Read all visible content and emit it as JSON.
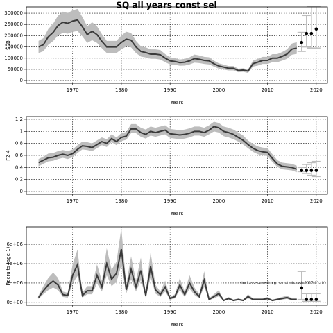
{
  "chart_data": [
    {
      "type": "line",
      "title": "SQ all years const sel",
      "xlabel": "Years",
      "ylabel": "SSB",
      "x": [
        1963,
        1964,
        1965,
        1966,
        1967,
        1968,
        1969,
        1970,
        1971,
        1972,
        1973,
        1974,
        1975,
        1976,
        1977,
        1978,
        1979,
        1980,
        1981,
        1982,
        1983,
        1984,
        1985,
        1986,
        1987,
        1988,
        1989,
        1990,
        1991,
        1992,
        1993,
        1994,
        1995,
        1996,
        1997,
        1998,
        1999,
        2000,
        2001,
        2002,
        2003,
        2004,
        2005,
        2006,
        2007,
        2008,
        2009,
        2010,
        2011,
        2012,
        2013,
        2014,
        2015,
        2016
      ],
      "values": [
        150000,
        160000,
        195000,
        215000,
        245000,
        260000,
        255000,
        265000,
        270000,
        240000,
        205000,
        220000,
        205000,
        175000,
        150000,
        150000,
        150000,
        170000,
        185000,
        180000,
        150000,
        130000,
        125000,
        118000,
        118000,
        115000,
        100000,
        88000,
        85000,
        80000,
        82000,
        88000,
        98000,
        95000,
        90000,
        88000,
        75000,
        65000,
        60000,
        55000,
        55000,
        45000,
        47000,
        42000,
        75000,
        82000,
        90000,
        90000,
        100000,
        100000,
        108000,
        118000,
        140000,
        145000
      ],
      "lower": [
        123000,
        131000,
        160000,
        176000,
        201000,
        213000,
        209000,
        217000,
        221000,
        197000,
        168000,
        180000,
        168000,
        144000,
        123000,
        123000,
        123000,
        139000,
        152000,
        148000,
        123000,
        107000,
        103000,
        97000,
        97000,
        94000,
        82000,
        72000,
        70000,
        66000,
        67000,
        72000,
        80000,
        78000,
        74000,
        72000,
        62000,
        53000,
        49000,
        45000,
        45000,
        37000,
        39000,
        34000,
        62000,
        67000,
        74000,
        74000,
        82000,
        82000,
        89000,
        97000,
        115000,
        119000
      ],
      "upper": [
        177000,
        189000,
        230000,
        254000,
        289000,
        307000,
        301000,
        313000,
        319000,
        283000,
        242000,
        260000,
        242000,
        207000,
        177000,
        177000,
        177000,
        201000,
        218000,
        212000,
        177000,
        153000,
        148000,
        139000,
        139000,
        136000,
        118000,
        104000,
        100000,
        94000,
        97000,
        104000,
        116000,
        112000,
        106000,
        104000,
        89000,
        77000,
        71000,
        65000,
        65000,
        53000,
        55000,
        50000,
        89000,
        97000,
        106000,
        106000,
        118000,
        118000,
        127000,
        139000,
        165000,
        171000
      ],
      "forecast": {
        "x": [
          2017,
          2018,
          2019,
          2020
        ],
        "values": [
          170000,
          210000,
          210000,
          230000
        ],
        "lower": [
          130000,
          150000,
          145000,
          145000
        ],
        "upper": [
          215000,
          290000,
          330000,
          330000
        ]
      },
      "color": "#3a3a3a",
      "band_color": "#bdbdbd",
      "forecast_color": "#000000",
      "interval_color": "#bdbdbd",
      "xlim": [
        1960.5,
        2022.3
      ],
      "xticks": [
        1970,
        1980,
        1990,
        2000,
        2010,
        2020
      ],
      "ylim": [
        -12000,
        328000
      ],
      "yticks": [
        0,
        50000,
        100000,
        150000,
        200000,
        250000,
        300000
      ],
      "grid": true
    },
    {
      "type": "line",
      "xlabel": "Years",
      "ylabel": "F2-4",
      "x": [
        1963,
        1964,
        1965,
        1966,
        1967,
        1968,
        1969,
        1970,
        1971,
        1972,
        1973,
        1974,
        1975,
        1976,
        1977,
        1978,
        1979,
        1980,
        1981,
        1982,
        1983,
        1984,
        1985,
        1986,
        1987,
        1988,
        1989,
        1990,
        1991,
        1992,
        1993,
        1994,
        1995,
        1996,
        1997,
        1998,
        1999,
        2000,
        2001,
        2002,
        2003,
        2004,
        2005,
        2006,
        2007,
        2008,
        2009,
        2010,
        2011,
        2012,
        2013,
        2014,
        2015,
        2016
      ],
      "values": [
        0.48,
        0.52,
        0.56,
        0.57,
        0.6,
        0.62,
        0.6,
        0.63,
        0.7,
        0.76,
        0.75,
        0.73,
        0.78,
        0.83,
        0.8,
        0.88,
        0.83,
        0.9,
        0.92,
        1.04,
        1.04,
        0.98,
        0.95,
        1.0,
        0.98,
        1.0,
        1.02,
        0.96,
        0.95,
        0.94,
        0.95,
        0.97,
        1.0,
        1.0,
        0.98,
        1.02,
        1.08,
        1.06,
        1.0,
        0.98,
        0.95,
        0.9,
        0.85,
        0.78,
        0.72,
        0.68,
        0.66,
        0.65,
        0.55,
        0.46,
        0.42,
        0.41,
        0.4,
        0.37
      ],
      "lower": [
        0.42,
        0.46,
        0.5,
        0.51,
        0.54,
        0.56,
        0.54,
        0.57,
        0.64,
        0.7,
        0.69,
        0.67,
        0.72,
        0.77,
        0.74,
        0.82,
        0.77,
        0.84,
        0.86,
        0.97,
        0.97,
        0.91,
        0.88,
        0.93,
        0.91,
        0.93,
        0.95,
        0.89,
        0.88,
        0.87,
        0.88,
        0.9,
        0.93,
        0.93,
        0.91,
        0.95,
        1.0,
        0.98,
        0.92,
        0.9,
        0.87,
        0.83,
        0.78,
        0.72,
        0.66,
        0.62,
        0.6,
        0.59,
        0.49,
        0.41,
        0.37,
        0.36,
        0.35,
        0.32
      ],
      "upper": [
        0.54,
        0.58,
        0.63,
        0.64,
        0.67,
        0.69,
        0.67,
        0.7,
        0.77,
        0.83,
        0.82,
        0.8,
        0.85,
        0.9,
        0.87,
        0.95,
        0.9,
        0.97,
        0.99,
        1.12,
        1.12,
        1.06,
        1.03,
        1.08,
        1.06,
        1.08,
        1.1,
        1.04,
        1.03,
        1.02,
        1.03,
        1.05,
        1.08,
        1.08,
        1.06,
        1.1,
        1.16,
        1.14,
        1.08,
        1.06,
        1.03,
        0.98,
        0.93,
        0.85,
        0.79,
        0.75,
        0.73,
        0.72,
        0.62,
        0.52,
        0.48,
        0.47,
        0.46,
        0.43
      ],
      "forecast": {
        "x": [
          2017,
          2018,
          2019,
          2020
        ],
        "values": [
          0.35,
          0.35,
          0.35,
          0.35
        ],
        "lower": [
          0.33,
          0.3,
          0.27,
          0.25
        ],
        "upper": [
          0.4,
          0.45,
          0.48,
          0.5
        ]
      },
      "color": "#3a3a3a",
      "band_color": "#bdbdbd",
      "forecast_color": "#000000",
      "interval_color": "#bdbdbd",
      "xlim": [
        1960.5,
        2022.3
      ],
      "xticks": [
        1970,
        1980,
        1990,
        2000,
        2010,
        2020
      ],
      "ylim": [
        -0.046,
        1.246
      ],
      "yticks": [
        0.0,
        0.2,
        0.4,
        0.6,
        0.8,
        1.0,
        1.2
      ],
      "grid": true
    },
    {
      "type": "line",
      "xlabel": "Years",
      "ylabel": "Recruits (age 1)",
      "annotation": "stockassessment.org, sam-tmb-nssh-2017-01-r01",
      "x": [
        1963,
        1964,
        1965,
        1966,
        1967,
        1968,
        1969,
        1970,
        1971,
        1972,
        1973,
        1974,
        1975,
        1976,
        1977,
        1978,
        1979,
        1980,
        1981,
        1982,
        1983,
        1984,
        1985,
        1986,
        1987,
        1988,
        1989,
        1990,
        1991,
        1992,
        1993,
        1994,
        1995,
        1996,
        1997,
        1998,
        1999,
        2000,
        2001,
        2002,
        2003,
        2004,
        2005,
        2006,
        2007,
        2008,
        2009,
        2010,
        2011,
        2012,
        2013,
        2014,
        2015,
        2016
      ],
      "values": [
        500000.0,
        1200000.0,
        1800000.0,
        2200000.0,
        1800000.0,
        800000.0,
        700000.0,
        2800000.0,
        3900000.0,
        700000.0,
        1200000.0,
        1200000.0,
        2800000.0,
        1600000.0,
        4000000.0,
        2400000.0,
        3000000.0,
        5500000.0,
        1300000.0,
        3400000.0,
        1600000.0,
        3300000.0,
        700000.0,
        3700000.0,
        1300000.0,
        800000.0,
        1600000.0,
        400000.0,
        600000.0,
        1800000.0,
        800000.0,
        2000000.0,
        1100000.0,
        600000.0,
        2300000.0,
        300000.0,
        600000.0,
        900000.0,
        200000.0,
        400000.0,
        200000.0,
        300000.0,
        200000.0,
        600000.0,
        300000.0,
        300000.0,
        300000.0,
        400000.0,
        200000.0,
        300000.0,
        400000.0,
        500000.0,
        300000.0,
        300000.0
      ],
      "lower": [
        350000.0,
        840000.0,
        1260000.0,
        1540000.0,
        1260000.0,
        560000.0,
        490000.0,
        1960000.0,
        2730000.0,
        490000.0,
        840000.0,
        840000.0,
        1960000.0,
        1120000.0,
        2800000.0,
        1680000.0,
        2100000.0,
        3850000.0,
        910000.0,
        2380000.0,
        1120000.0,
        2310000.0,
        490000.0,
        2590000.0,
        910000.0,
        560000.0,
        1120000.0,
        280000.0,
        420000.0,
        1260000.0,
        560000.0,
        1400000.0,
        770000.0,
        420000.0,
        1610000.0,
        210000.0,
        420000.0,
        630000.0,
        140000.0,
        280000.0,
        140000.0,
        210000.0,
        140000.0,
        420000.0,
        210000.0,
        210000.0,
        210000.0,
        280000.0,
        140000.0,
        210000.0,
        280000.0,
        350000.0,
        210000.0,
        210000.0
      ],
      "upper": [
        700000.0,
        1680000.0,
        2520000.0,
        3080000.0,
        2520000.0,
        1120000.0,
        980000.0,
        3920000.0,
        5460000.0,
        980000.0,
        1680000.0,
        1680000.0,
        3920000.0,
        2240000.0,
        5600000.0,
        3360000.0,
        4200000.0,
        7700000.0,
        1820000.0,
        4760000.0,
        2240000.0,
        4620000.0,
        980000.0,
        5180000.0,
        1820000.0,
        1120000.0,
        2240000.0,
        560000.0,
        840000.0,
        2520000.0,
        1120000.0,
        2800000.0,
        1540000.0,
        840000.0,
        3220000.0,
        420000.0,
        840000.0,
        1260000.0,
        280000.0,
        560000.0,
        280000.0,
        420000.0,
        280000.0,
        840000.0,
        420000.0,
        420000.0,
        420000.0,
        560000.0,
        280000.0,
        420000.0,
        560000.0,
        700000.0,
        420000.0,
        420000.0
      ],
      "forecast": {
        "x": [
          2017,
          2018,
          2019,
          2020
        ],
        "values": [
          1500000.0,
          300000.0,
          300000.0,
          300000.0
        ],
        "lower": [
          300000.0,
          100000.0,
          100000.0,
          100000.0
        ],
        "upper": [
          3200000.0,
          900000.0,
          900000.0,
          900000.0
        ]
      },
      "color": "#3a3a3a",
      "band_color": "#bdbdbd",
      "forecast_color": "#000000",
      "interval_color": "#bdbdbd",
      "xlim": [
        1960.5,
        2022.3
      ],
      "xticks": [
        1970,
        1980,
        1990,
        2000,
        2010,
        2020
      ],
      "ylim": [
        -300000,
        7800000
      ],
      "yticks": [
        {
          "value": 0,
          "label": "0e+00"
        },
        {
          "value": 2000000,
          "label": "2e+06"
        },
        {
          "value": 4000000,
          "label": "4e+06"
        },
        {
          "value": 6000000,
          "label": "6e+06"
        }
      ],
      "grid": true
    }
  ]
}
